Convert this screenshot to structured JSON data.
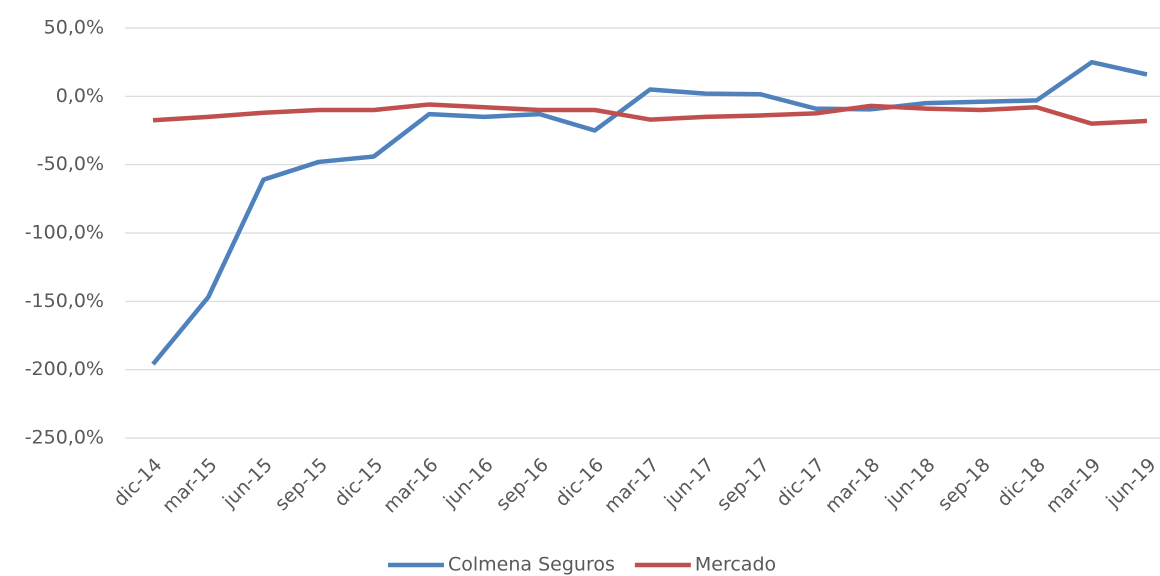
{
  "chart_data": {
    "type": "line",
    "categories": [
      "dic-14",
      "mar-15",
      "jun-15",
      "sep-15",
      "dic-15",
      "mar-16",
      "jun-16",
      "sep-16",
      "dic-16",
      "mar-17",
      "jun-17",
      "sep-17",
      "dic-17",
      "mar-18",
      "jun-18",
      "sep-18",
      "dic-18",
      "mar-19",
      "jun-19"
    ],
    "series": [
      {
        "name": "Colmena Seguros",
        "color": "#4f81bd",
        "values": [
          -196,
          -147,
          -61,
          -48,
          -44,
          -13,
          -15,
          -13,
          -25,
          5,
          2,
          1.5,
          -9,
          -9.5,
          -5,
          -4,
          -3,
          25,
          16
        ]
      },
      {
        "name": "Mercado",
        "color": "#c0504d",
        "values": [
          -17.5,
          -15,
          -12,
          -10,
          -10,
          -6,
          -8,
          -10,
          -10,
          -17,
          -15,
          -14,
          -12.5,
          -7,
          -9,
          -10,
          -8,
          -20,
          -18
        ]
      }
    ],
    "ylim": [
      -250,
      50
    ],
    "yticks": [
      {
        "value": -250,
        "label": "-250,0%"
      },
      {
        "value": -200,
        "label": "-200,0%"
      },
      {
        "value": -150,
        "label": "-150,0%"
      },
      {
        "value": -100,
        "label": "-100,0%"
      },
      {
        "value": -50,
        "label": "-50,0%"
      },
      {
        "value": 0,
        "label": "0,0%"
      },
      {
        "value": 50,
        "label": "50,0%"
      }
    ],
    "grid": true,
    "legend": "bottom"
  }
}
